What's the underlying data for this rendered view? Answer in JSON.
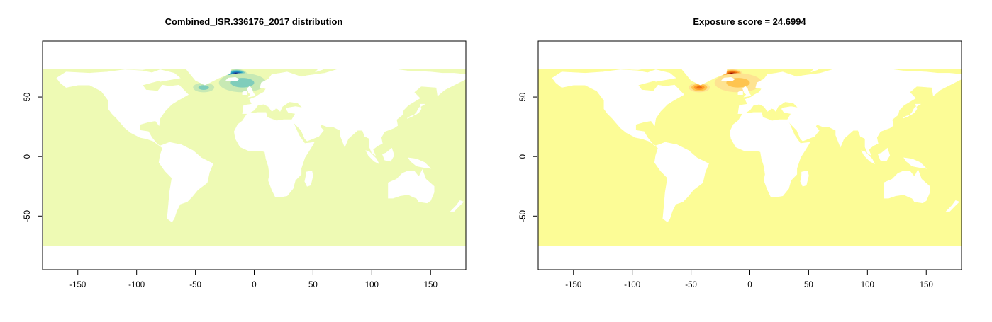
{
  "chart_data": [
    {
      "type": "heatmap",
      "title": "Combined_ISR.336176_2017 distribution",
      "xlabel": "",
      "ylabel": "",
      "xlim": [
        -180,
        180
      ],
      "ylim": [
        -95,
        97
      ],
      "x_ticks": [
        -150,
        -100,
        -50,
        0,
        50,
        100,
        150
      ],
      "y_ticks": [
        -50,
        0,
        50
      ],
      "x_tick_labels": [
        "-150",
        "-100",
        "-50",
        "0",
        "50",
        "100",
        "150"
      ],
      "y_tick_labels": [
        "-50",
        "0",
        "50"
      ],
      "ocean_band_lat": [
        -75,
        74
      ],
      "palette": "yellow-green-blue",
      "background_color": "#eefab4",
      "hotspots": [
        {
          "lon": -15,
          "lat": 69,
          "rx": 9,
          "ry": 4.5,
          "level": 1.0
        },
        {
          "lon": 2,
          "lat": 62,
          "rx": 6,
          "ry": 3.5,
          "level": 0.7
        },
        {
          "lon": -43,
          "lat": 58,
          "rx": 9,
          "ry": 4,
          "level": 0.3
        },
        {
          "lon": -10,
          "lat": 62,
          "rx": 20,
          "ry": 8,
          "level": 0.25
        }
      ],
      "level_colors": [
        "#eefab4",
        "#c7e9b4",
        "#7fcdbb",
        "#41b6c4",
        "#1d91c0",
        "#225ea8",
        "#0c2c84",
        "#081d58"
      ]
    },
    {
      "type": "heatmap",
      "title": "Exposure score = 24.6994",
      "xlabel": "",
      "ylabel": "",
      "xlim": [
        -180,
        180
      ],
      "ylim": [
        -95,
        97
      ],
      "x_ticks": [
        -150,
        -100,
        -50,
        0,
        50,
        100,
        150
      ],
      "y_ticks": [
        -50,
        0,
        50
      ],
      "x_tick_labels": [
        "-150",
        "-100",
        "-50",
        "0",
        "50",
        "100",
        "150"
      ],
      "y_tick_labels": [
        "-50",
        "0",
        "50"
      ],
      "ocean_band_lat": [
        -75,
        74
      ],
      "palette": "yellow-orange-red",
      "background_color": "#fcfc96",
      "hotspots": [
        {
          "lon": -15,
          "lat": 69,
          "rx": 9,
          "ry": 4.5,
          "level": 1.0
        },
        {
          "lon": 2,
          "lat": 62,
          "rx": 6,
          "ry": 3.5,
          "level": 0.8
        },
        {
          "lon": -43,
          "lat": 58,
          "rx": 9,
          "ry": 4,
          "level": 0.5
        },
        {
          "lon": -10,
          "lat": 62,
          "rx": 20,
          "ry": 8,
          "level": 0.35
        }
      ],
      "level_colors": [
        "#fcfc96",
        "#fee391",
        "#fec44f",
        "#fe9929",
        "#ec7014",
        "#cc4c02",
        "#990000",
        "#2b0a3d"
      ]
    }
  ]
}
